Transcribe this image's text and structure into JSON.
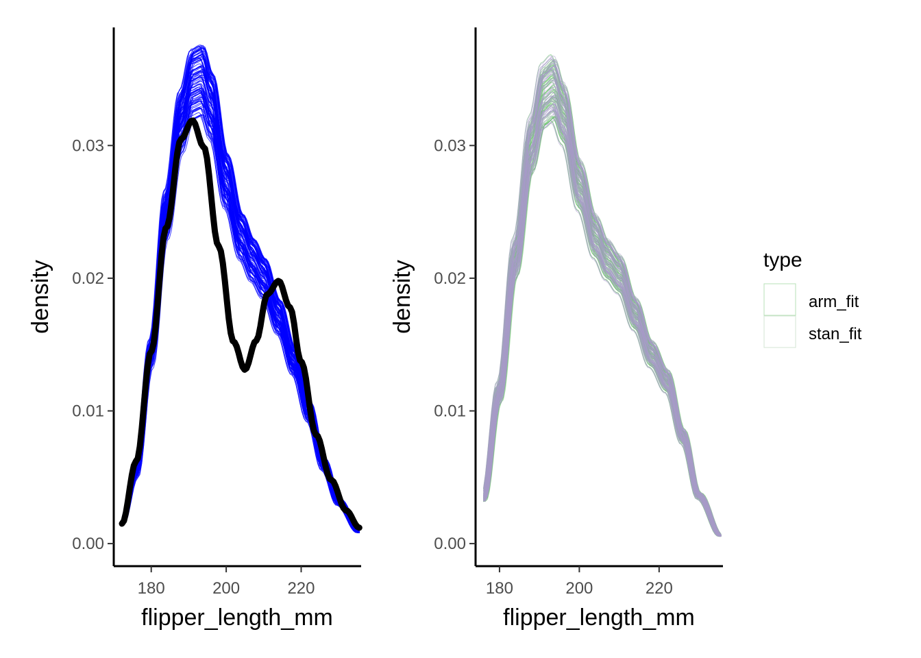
{
  "chart_data": [
    {
      "type": "line",
      "panel": "left",
      "xlabel": "flipper_length_mm",
      "ylabel": "density",
      "xlim": [
        170,
        236
      ],
      "ylim": [
        -0.0017,
        0.0389
      ],
      "x_ticks": [
        180,
        200,
        220
      ],
      "x_tick_labels": [
        "180",
        "200",
        "220"
      ],
      "y_ticks": [
        0,
        0.01,
        0.02,
        0.03
      ],
      "y_tick_labels": [
        "0.00",
        "0.01",
        "0.02",
        "0.03"
      ],
      "grid": false,
      "series": [
        {
          "kind": "replicates",
          "color": "#0000ff",
          "count": 100,
          "x": [
            172.2,
            176,
            180,
            184,
            188,
            191,
            193.5,
            196,
            200,
            204,
            207,
            210,
            214,
            218,
            222,
            226,
            230,
            235.5
          ],
          "y": [
            0.0016,
            0.0055,
            0.0147,
            0.0254,
            0.0326,
            0.0355,
            0.0358,
            0.0338,
            0.028,
            0.0237,
            0.0219,
            0.0205,
            0.0175,
            0.0141,
            0.0102,
            0.0061,
            0.0032,
            0.0009
          ]
        },
        {
          "kind": "observed",
          "color": "#000000",
          "x": [
            172.2,
            176,
            180,
            184,
            188,
            191,
            194,
            198,
            202,
            205,
            208,
            211,
            214,
            217,
            220,
            224,
            228,
            232,
            235.5
          ],
          "y": [
            0.0015,
            0.0062,
            0.0145,
            0.0238,
            0.0305,
            0.0319,
            0.0299,
            0.0224,
            0.0152,
            0.0131,
            0.0153,
            0.0188,
            0.0198,
            0.0178,
            0.0137,
            0.0082,
            0.0048,
            0.0025,
            0.0012
          ]
        }
      ]
    },
    {
      "type": "line",
      "panel": "right",
      "xlabel": "flipper_length_mm",
      "ylabel": "density",
      "xlim": [
        174,
        236
      ],
      "ylim": [
        -0.0017,
        0.0389
      ],
      "x_ticks": [
        180,
        200,
        220
      ],
      "x_tick_labels": [
        "180",
        "200",
        "220"
      ],
      "y_ticks": [
        0,
        0.01,
        0.02,
        0.03
      ],
      "y_tick_labels": [
        "0.00",
        "0.01",
        "0.02",
        "0.03"
      ],
      "grid": false,
      "series": [
        {
          "name": "arm_fit",
          "color": "#66c266",
          "count": 60,
          "x": [
            176,
            180,
            184,
            188,
            191,
            193.5,
            196,
            200,
            204,
            207,
            210,
            214,
            218,
            222,
            226,
            230,
            235.5
          ],
          "y": [
            0.0035,
            0.0117,
            0.0221,
            0.0308,
            0.0346,
            0.0352,
            0.0333,
            0.0278,
            0.0238,
            0.022,
            0.0209,
            0.0178,
            0.0147,
            0.0126,
            0.0083,
            0.0037,
            0.0006
          ]
        },
        {
          "name": "stan_fit",
          "color": "#a89bc9",
          "count": 60,
          "x": [
            176,
            180,
            184,
            188,
            191,
            193.5,
            196,
            200,
            204,
            207,
            210,
            214,
            218,
            222,
            226,
            230,
            235.5
          ],
          "y": [
            0.0035,
            0.0117,
            0.0221,
            0.0308,
            0.0346,
            0.0352,
            0.0333,
            0.0278,
            0.0238,
            0.022,
            0.0209,
            0.0178,
            0.0147,
            0.0126,
            0.0083,
            0.0037,
            0.0006
          ]
        }
      ],
      "legend": {
        "title": "type",
        "position": "right",
        "entries": [
          "arm_fit",
          "stan_fit"
        ]
      }
    }
  ]
}
